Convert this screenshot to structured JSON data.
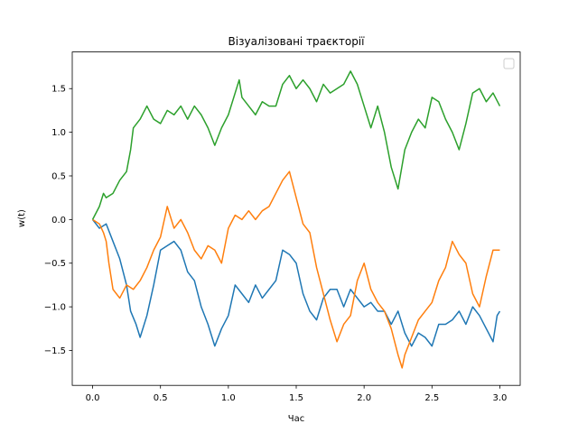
{
  "chart_data": {
    "type": "line",
    "title": "Візуалізовані траєкторії",
    "xlabel": "Час",
    "ylabel": "w(t)",
    "xlim": [
      -0.15,
      3.15
    ],
    "ylim": [
      -1.9,
      1.92
    ],
    "xticks": [
      0.0,
      0.5,
      1.0,
      1.5,
      2.0,
      2.5,
      3.0
    ],
    "xtick_labels": [
      "0.0",
      "0.5",
      "1.0",
      "1.5",
      "2.0",
      "2.5",
      "3.0"
    ],
    "yticks": [
      -1.5,
      -1.0,
      -0.5,
      0.0,
      0.5,
      1.0,
      1.5
    ],
    "ytick_labels": [
      "−1.5",
      "−1.0",
      "−0.5",
      "0.0",
      "0.5",
      "1.0",
      "1.5"
    ],
    "grid": false,
    "legend": "top-right, empty",
    "series": [
      {
        "color": "#1f77b4",
        "points": [
          [
            0.0,
            0.0
          ],
          [
            0.05,
            -0.1
          ],
          [
            0.1,
            -0.05
          ],
          [
            0.15,
            -0.25
          ],
          [
            0.2,
            -0.45
          ],
          [
            0.25,
            -0.75
          ],
          [
            0.28,
            -1.05
          ],
          [
            0.32,
            -1.2
          ],
          [
            0.35,
            -1.35
          ],
          [
            0.4,
            -1.1
          ],
          [
            0.45,
            -0.75
          ],
          [
            0.5,
            -0.35
          ],
          [
            0.55,
            -0.3
          ],
          [
            0.6,
            -0.25
          ],
          [
            0.65,
            -0.35
          ],
          [
            0.7,
            -0.6
          ],
          [
            0.75,
            -0.7
          ],
          [
            0.8,
            -1.0
          ],
          [
            0.85,
            -1.2
          ],
          [
            0.9,
            -1.45
          ],
          [
            0.95,
            -1.25
          ],
          [
            1.0,
            -1.1
          ],
          [
            1.05,
            -0.75
          ],
          [
            1.1,
            -0.85
          ],
          [
            1.15,
            -0.95
          ],
          [
            1.2,
            -0.75
          ],
          [
            1.25,
            -0.9
          ],
          [
            1.3,
            -0.8
          ],
          [
            1.35,
            -0.7
          ],
          [
            1.4,
            -0.35
          ],
          [
            1.45,
            -0.4
          ],
          [
            1.5,
            -0.5
          ],
          [
            1.55,
            -0.85
          ],
          [
            1.6,
            -1.05
          ],
          [
            1.65,
            -1.15
          ],
          [
            1.7,
            -0.9
          ],
          [
            1.75,
            -0.8
          ],
          [
            1.8,
            -0.8
          ],
          [
            1.85,
            -1.0
          ],
          [
            1.9,
            -0.8
          ],
          [
            1.95,
            -0.9
          ],
          [
            2.0,
            -1.0
          ],
          [
            2.05,
            -0.95
          ],
          [
            2.1,
            -1.05
          ],
          [
            2.15,
            -1.05
          ],
          [
            2.2,
            -1.2
          ],
          [
            2.25,
            -1.05
          ],
          [
            2.3,
            -1.3
          ],
          [
            2.35,
            -1.45
          ],
          [
            2.4,
            -1.3
          ],
          [
            2.45,
            -1.35
          ],
          [
            2.5,
            -1.45
          ],
          [
            2.55,
            -1.2
          ],
          [
            2.6,
            -1.2
          ],
          [
            2.65,
            -1.15
          ],
          [
            2.7,
            -1.05
          ],
          [
            2.75,
            -1.2
          ],
          [
            2.8,
            -1.0
          ],
          [
            2.85,
            -1.1
          ],
          [
            2.9,
            -1.25
          ],
          [
            2.95,
            -1.4
          ],
          [
            2.98,
            -1.1
          ],
          [
            3.0,
            -1.05
          ]
        ]
      },
      {
        "color": "#ff7f0e",
        "points": [
          [
            0.0,
            0.0
          ],
          [
            0.05,
            -0.05
          ],
          [
            0.08,
            -0.15
          ],
          [
            0.1,
            -0.25
          ],
          [
            0.12,
            -0.5
          ],
          [
            0.15,
            -0.8
          ],
          [
            0.2,
            -0.9
          ],
          [
            0.25,
            -0.75
          ],
          [
            0.3,
            -0.8
          ],
          [
            0.35,
            -0.7
          ],
          [
            0.4,
            -0.55
          ],
          [
            0.45,
            -0.35
          ],
          [
            0.5,
            -0.2
          ],
          [
            0.55,
            0.15
          ],
          [
            0.6,
            -0.1
          ],
          [
            0.65,
            0.0
          ],
          [
            0.7,
            -0.15
          ],
          [
            0.75,
            -0.35
          ],
          [
            0.8,
            -0.45
          ],
          [
            0.85,
            -0.3
          ],
          [
            0.9,
            -0.35
          ],
          [
            0.95,
            -0.5
          ],
          [
            1.0,
            -0.1
          ],
          [
            1.05,
            0.05
          ],
          [
            1.1,
            0.0
          ],
          [
            1.15,
            0.1
          ],
          [
            1.2,
            0.0
          ],
          [
            1.25,
            0.1
          ],
          [
            1.3,
            0.15
          ],
          [
            1.35,
            0.3
          ],
          [
            1.4,
            0.45
          ],
          [
            1.45,
            0.55
          ],
          [
            1.5,
            0.25
          ],
          [
            1.55,
            -0.05
          ],
          [
            1.6,
            -0.15
          ],
          [
            1.65,
            -0.55
          ],
          [
            1.7,
            -0.85
          ],
          [
            1.75,
            -1.15
          ],
          [
            1.8,
            -1.4
          ],
          [
            1.85,
            -1.2
          ],
          [
            1.9,
            -1.1
          ],
          [
            1.95,
            -0.7
          ],
          [
            2.0,
            -0.5
          ],
          [
            2.05,
            -0.8
          ],
          [
            2.1,
            -0.95
          ],
          [
            2.15,
            -1.05
          ],
          [
            2.2,
            -1.25
          ],
          [
            2.25,
            -1.55
          ],
          [
            2.28,
            -1.7
          ],
          [
            2.3,
            -1.55
          ],
          [
            2.35,
            -1.35
          ],
          [
            2.4,
            -1.15
          ],
          [
            2.45,
            -1.05
          ],
          [
            2.5,
            -0.95
          ],
          [
            2.55,
            -0.7
          ],
          [
            2.6,
            -0.55
          ],
          [
            2.65,
            -0.25
          ],
          [
            2.7,
            -0.4
          ],
          [
            2.75,
            -0.5
          ],
          [
            2.8,
            -0.85
          ],
          [
            2.85,
            -1.0
          ],
          [
            2.9,
            -0.65
          ],
          [
            2.95,
            -0.35
          ],
          [
            3.0,
            -0.35
          ]
        ]
      },
      {
        "color": "#2ca02c",
        "points": [
          [
            0.0,
            0.0
          ],
          [
            0.05,
            0.15
          ],
          [
            0.08,
            0.3
          ],
          [
            0.1,
            0.25
          ],
          [
            0.15,
            0.3
          ],
          [
            0.2,
            0.45
          ],
          [
            0.25,
            0.55
          ],
          [
            0.28,
            0.8
          ],
          [
            0.3,
            1.05
          ],
          [
            0.35,
            1.15
          ],
          [
            0.4,
            1.3
          ],
          [
            0.45,
            1.15
          ],
          [
            0.5,
            1.1
          ],
          [
            0.55,
            1.25
          ],
          [
            0.6,
            1.2
          ],
          [
            0.65,
            1.3
          ],
          [
            0.7,
            1.15
          ],
          [
            0.75,
            1.3
          ],
          [
            0.8,
            1.2
          ],
          [
            0.85,
            1.05
          ],
          [
            0.9,
            0.85
          ],
          [
            0.95,
            1.05
          ],
          [
            1.0,
            1.2
          ],
          [
            1.05,
            1.45
          ],
          [
            1.08,
            1.6
          ],
          [
            1.1,
            1.4
          ],
          [
            1.15,
            1.3
          ],
          [
            1.2,
            1.2
          ],
          [
            1.25,
            1.35
          ],
          [
            1.3,
            1.3
          ],
          [
            1.35,
            1.3
          ],
          [
            1.4,
            1.55
          ],
          [
            1.45,
            1.65
          ],
          [
            1.5,
            1.5
          ],
          [
            1.55,
            1.6
          ],
          [
            1.6,
            1.5
          ],
          [
            1.65,
            1.35
          ],
          [
            1.7,
            1.55
          ],
          [
            1.75,
            1.45
          ],
          [
            1.8,
            1.5
          ],
          [
            1.85,
            1.55
          ],
          [
            1.9,
            1.7
          ],
          [
            1.95,
            1.55
          ],
          [
            2.0,
            1.3
          ],
          [
            2.05,
            1.05
          ],
          [
            2.1,
            1.3
          ],
          [
            2.15,
            1.0
          ],
          [
            2.2,
            0.6
          ],
          [
            2.25,
            0.35
          ],
          [
            2.3,
            0.8
          ],
          [
            2.35,
            1.0
          ],
          [
            2.4,
            1.15
          ],
          [
            2.45,
            1.05
          ],
          [
            2.5,
            1.4
          ],
          [
            2.55,
            1.35
          ],
          [
            2.6,
            1.15
          ],
          [
            2.65,
            1.0
          ],
          [
            2.7,
            0.8
          ],
          [
            2.75,
            1.1
          ],
          [
            2.8,
            1.45
          ],
          [
            2.85,
            1.5
          ],
          [
            2.9,
            1.35
          ],
          [
            2.95,
            1.45
          ],
          [
            3.0,
            1.3
          ]
        ]
      }
    ]
  }
}
